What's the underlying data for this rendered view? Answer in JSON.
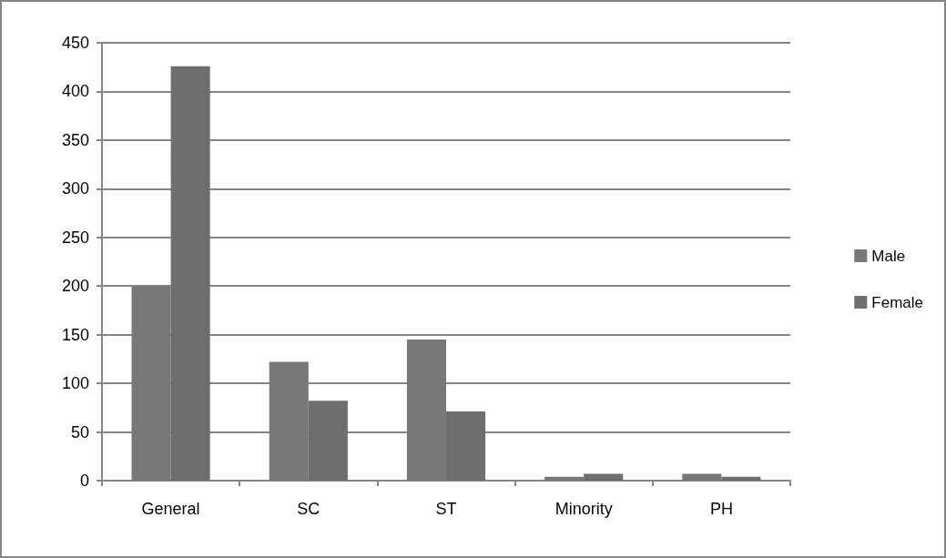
{
  "chart_data": {
    "type": "bar",
    "categories": [
      "General",
      "SC",
      "ST",
      "Minority",
      "PH"
    ],
    "series": [
      {
        "name": "Male",
        "color": "#787878",
        "values": [
          200,
          122,
          145,
          4,
          7
        ]
      },
      {
        "name": "Female",
        "color": "#6e6e6e",
        "values": [
          426,
          82,
          71,
          7,
          4
        ]
      }
    ],
    "ylim": [
      0,
      450
    ],
    "yticks": [
      0,
      50,
      100,
      150,
      200,
      250,
      300,
      350,
      400,
      450
    ],
    "grid": "y",
    "legend": "right"
  }
}
